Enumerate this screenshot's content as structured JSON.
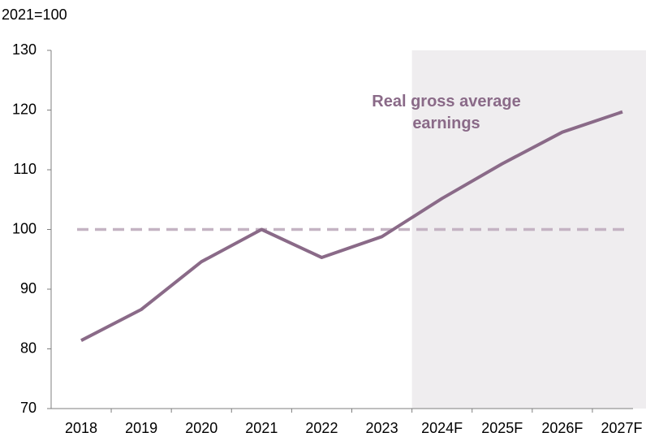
{
  "chart_data": {
    "type": "line",
    "y_axis_label": "2021=100",
    "categories": [
      "2018",
      "2019",
      "2020",
      "2021",
      "2022",
      "2023",
      "2024F",
      "2025F",
      "2026F",
      "2027F"
    ],
    "series": [
      {
        "name": "Real gross average earnings",
        "color": "#8a6a88",
        "values": [
          81.4,
          86.6,
          94.6,
          100,
          95.3,
          98.8,
          105.2,
          111.0,
          116.3,
          119.7
        ]
      }
    ],
    "reference_line": {
      "value": 100,
      "color": "#c4b3c3",
      "dashed": true
    },
    "shade": {
      "from_index": 6,
      "color": "#efedef"
    },
    "ylim": [
      70,
      130
    ],
    "yticks": [
      70,
      80,
      90,
      100,
      110,
      120,
      130
    ],
    "grid": false
  }
}
